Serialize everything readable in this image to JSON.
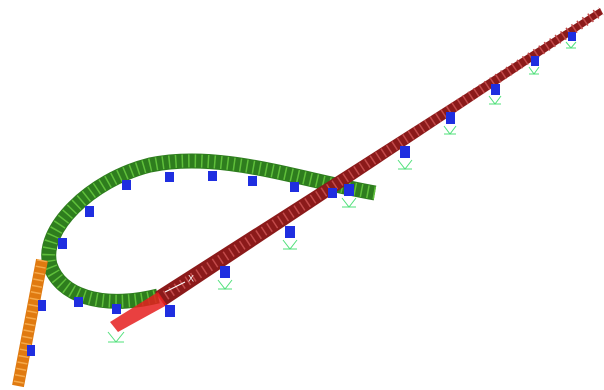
{
  "axis_label": "X"
}
